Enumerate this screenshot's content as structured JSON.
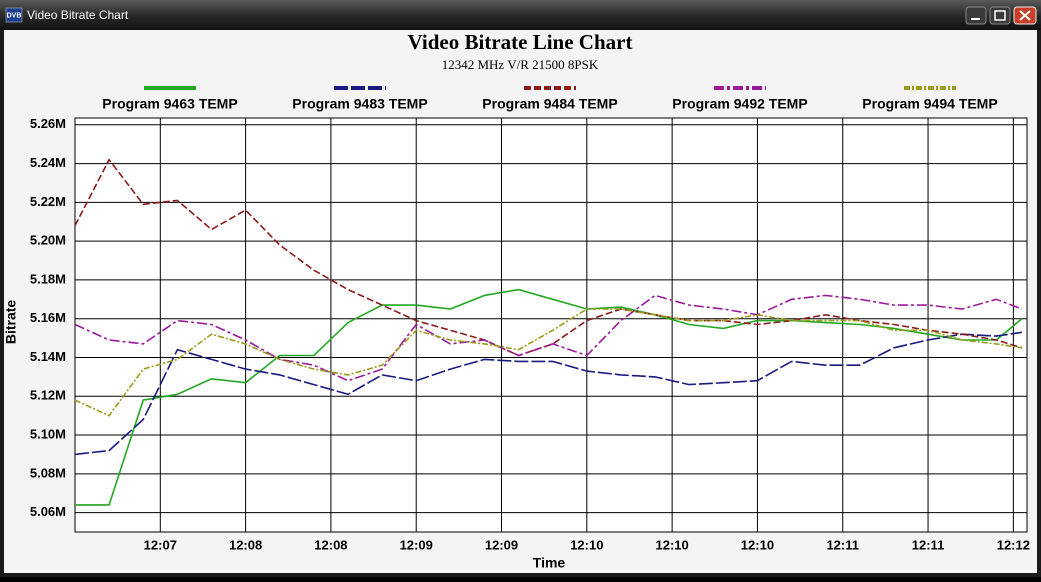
{
  "window": {
    "title": "Video Bitrate Chart",
    "icon": "DVB"
  },
  "chart_data": {
    "type": "line",
    "title": "Video Bitrate Line Chart",
    "subtitle": "12342 MHz V/R 21500 8PSK",
    "x_label": "Time",
    "y_label": "Bitrate",
    "x": [
      0,
      4,
      8,
      12,
      16,
      20,
      24,
      28,
      32,
      36,
      40,
      44,
      48,
      52,
      56,
      60,
      64,
      68,
      72,
      76,
      80,
      84,
      88,
      92,
      96,
      100,
      104,
      108,
      111
    ],
    "xlim": [
      0,
      111.6
    ],
    "xticks": [
      {
        "value": 10,
        "label": "12:07"
      },
      {
        "value": 20,
        "label": "12:08"
      },
      {
        "value": 30,
        "label": "12:08"
      },
      {
        "value": 40,
        "label": "12:09"
      },
      {
        "value": 50,
        "label": "12:09"
      },
      {
        "value": 60,
        "label": "12:10"
      },
      {
        "value": 70,
        "label": "12:10"
      },
      {
        "value": 80,
        "label": "12:10"
      },
      {
        "value": 90,
        "label": "12:11"
      },
      {
        "value": 100,
        "label": "12:11"
      },
      {
        "value": 110,
        "label": "12:12"
      }
    ],
    "ylim": [
      5050000,
      5263500
    ],
    "yticks": [
      {
        "value": 5060000,
        "label": "5.06M"
      },
      {
        "value": 5080000,
        "label": "5.08M"
      },
      {
        "value": 5100000,
        "label": "5.10M"
      },
      {
        "value": 5120000,
        "label": "5.12M"
      },
      {
        "value": 5140000,
        "label": "5.14M"
      },
      {
        "value": 5160000,
        "label": "5.16M"
      },
      {
        "value": 5180000,
        "label": "5.18M"
      },
      {
        "value": 5200000,
        "label": "5.20M"
      },
      {
        "value": 5220000,
        "label": "5.22M"
      },
      {
        "value": 5240000,
        "label": "5.24M"
      },
      {
        "value": 5260000,
        "label": "5.26M"
      }
    ],
    "grid": true,
    "legend": "top",
    "series": [
      {
        "name": "Program 9463 TEMP",
        "color": "#22a822",
        "values": [
          5064000,
          5064000,
          5118000,
          5121000,
          5129000,
          5127000,
          5141000,
          5141000,
          5158000,
          5167000,
          5167000,
          5165000,
          5172000,
          5175000,
          5170000,
          5165000,
          5166000,
          5162000,
          5157000,
          5155000,
          5159000,
          5159000,
          5158000,
          5157000,
          5155000,
          5152000,
          5149000,
          5149000,
          5160000
        ]
      },
      {
        "name": "Program 9483 TEMP",
        "color": "#1a1a80",
        "values": [
          5090000,
          5092000,
          5108000,
          5144000,
          5139000,
          5134000,
          5131000,
          5126000,
          5121000,
          5131000,
          5128000,
          5134000,
          5139000,
          5138000,
          5138000,
          5133000,
          5131000,
          5130000,
          5126000,
          5127000,
          5128000,
          5138000,
          5136000,
          5136000,
          5145000,
          5149000,
          5152000,
          5151000,
          5153000
        ]
      },
      {
        "name": "Program 9484 TEMP",
        "color": "#8b1a1a",
        "values": [
          5208000,
          5242000,
          5219000,
          5221000,
          5206000,
          5216000,
          5198000,
          5185000,
          5175000,
          5167000,
          5159000,
          5154000,
          5149000,
          5141000,
          5147000,
          5159000,
          5165000,
          5162000,
          5159000,
          5159000,
          5157000,
          5159000,
          5162000,
          5159000,
          5157000,
          5154000,
          5152000,
          5149000,
          5145000
        ]
      },
      {
        "name": "Program 9492 TEMP",
        "color": "#9b1a9b",
        "values": [
          5157000,
          5149000,
          5147000,
          5159000,
          5157000,
          5149000,
          5139000,
          5136000,
          5128000,
          5134000,
          5157000,
          5147000,
          5149000,
          5141000,
          5147000,
          5141000,
          5159000,
          5172000,
          5167000,
          5165000,
          5162000,
          5170000,
          5172000,
          5170000,
          5167000,
          5167000,
          5165000,
          5170000,
          5165000
        ]
      },
      {
        "name": "Program 9494 TEMP",
        "color": "#9b9b1a",
        "values": [
          5118000,
          5110000,
          5134000,
          5139000,
          5152000,
          5147000,
          5139000,
          5134000,
          5131000,
          5136000,
          5154000,
          5149000,
          5147000,
          5144000,
          5154000,
          5165000,
          5165000,
          5162000,
          5159000,
          5159000,
          5162000,
          5159000,
          5159000,
          5159000,
          5154000,
          5154000,
          5149000,
          5147000,
          5145000
        ]
      }
    ]
  }
}
